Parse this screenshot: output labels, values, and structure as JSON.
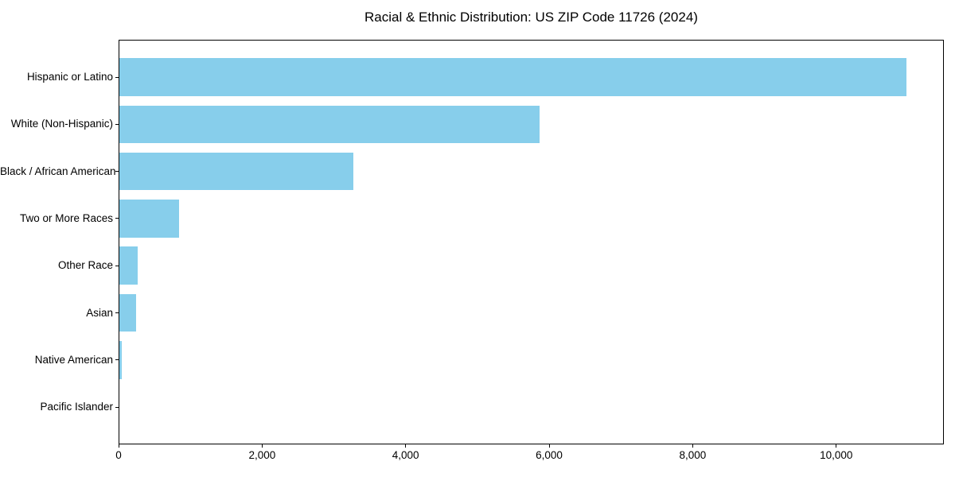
{
  "figure": {
    "title": "Racial & Ethnic Distribution: US ZIP Code 11726 (2024)"
  },
  "chart_data": {
    "type": "bar",
    "orientation": "horizontal",
    "title": "Racial & Ethnic Distribution: US ZIP Code 11726 (2024)",
    "categories": [
      "Hispanic or Latino",
      "White (Non-Hispanic)",
      "Black / African American",
      "Two or More Races",
      "Other Race",
      "Asian",
      "Native American",
      "Pacific Islander"
    ],
    "values": [
      10965,
      5858,
      3262,
      833,
      258,
      233,
      33,
      0
    ],
    "xlabel": "",
    "ylabel": "",
    "xlim": [
      0,
      11500
    ],
    "xticks": [
      0,
      2000,
      4000,
      6000,
      8000,
      10000
    ],
    "xtick_labels": [
      "0",
      "2,000",
      "4,000",
      "6,000",
      "8,000",
      "10,000"
    ],
    "bar_color": "#87CEEB",
    "spine_color": "#000000",
    "text_color": "#000000",
    "background_color": "#ffffff",
    "grid": false,
    "legend": null
  }
}
